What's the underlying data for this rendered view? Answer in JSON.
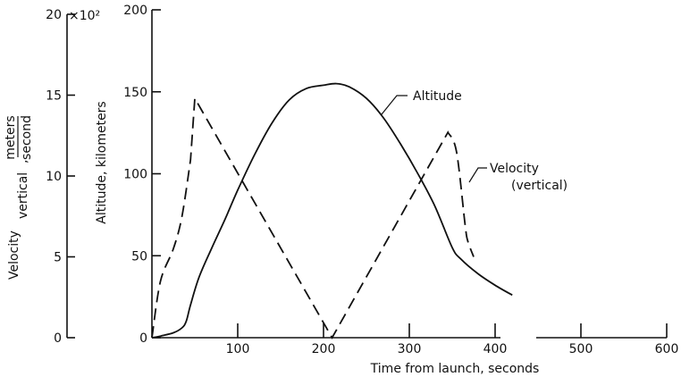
{
  "chart_data": {
    "type": "line",
    "title": "",
    "xlabel": "Time from launch, seconds",
    "x_ticks": [
      100,
      200,
      300,
      400,
      500,
      600
    ],
    "x_tick_labels": [
      "100",
      "200",
      "300",
      "400",
      "500",
      "600"
    ],
    "x_zero_label": "0",
    "xlim": [
      0,
      600
    ],
    "axes": {
      "altitude": {
        "label": "Altitude, kilometers",
        "ylim": [
          0,
          200
        ],
        "ticks": [
          0,
          50,
          100,
          150,
          200
        ],
        "tick_labels": [
          "0",
          "50",
          "100",
          "150",
          "200"
        ]
      },
      "velocity": {
        "label_prefix": "Velocity",
        "label_sub": "vertical",
        "unit_numerator": "meters",
        "unit_denominator": "second",
        "multiplier": "×10²",
        "ylim": [
          0,
          20
        ],
        "ticks": [
          0,
          5,
          10,
          15,
          20
        ],
        "tick_labels": [
          "0",
          "5",
          "10",
          "15",
          "20"
        ]
      }
    },
    "series": [
      {
        "name": "Altitude",
        "style": "solid",
        "axis": "altitude",
        "points": [
          [
            0,
            0
          ],
          [
            10,
            1
          ],
          [
            25,
            3
          ],
          [
            35,
            6
          ],
          [
            40,
            10
          ],
          [
            45,
            20
          ],
          [
            55,
            37
          ],
          [
            70,
            55
          ],
          [
            85,
            72
          ],
          [
            100,
            90
          ],
          [
            120,
            112
          ],
          [
            140,
            131
          ],
          [
            160,
            145
          ],
          [
            180,
            152
          ],
          [
            200,
            154
          ],
          [
            215,
            155
          ],
          [
            230,
            153
          ],
          [
            250,
            146
          ],
          [
            270,
            134
          ],
          [
            290,
            118
          ],
          [
            310,
            100
          ],
          [
            330,
            80
          ],
          [
            350,
            55
          ],
          [
            360,
            48
          ],
          [
            380,
            39
          ],
          [
            400,
            32
          ],
          [
            420,
            26
          ]
        ]
      },
      {
        "name": "Velocity (vertical)",
        "style": "dashed",
        "axis": "velocity",
        "points": [
          [
            0,
            0
          ],
          [
            10,
            3.5
          ],
          [
            25,
            5.5
          ],
          [
            35,
            7.5
          ],
          [
            45,
            11
          ],
          [
            50,
            14.8
          ],
          [
            210,
            0
          ],
          [
            345,
            12.7
          ],
          [
            355,
            11.5
          ],
          [
            365,
            7
          ],
          [
            368,
            6
          ],
          [
            375,
            5
          ]
        ]
      }
    ],
    "annotations": {
      "altitude_label": "Altitude",
      "velocity_label_line1": "Velocity",
      "velocity_label_line2": "(vertical)"
    }
  }
}
